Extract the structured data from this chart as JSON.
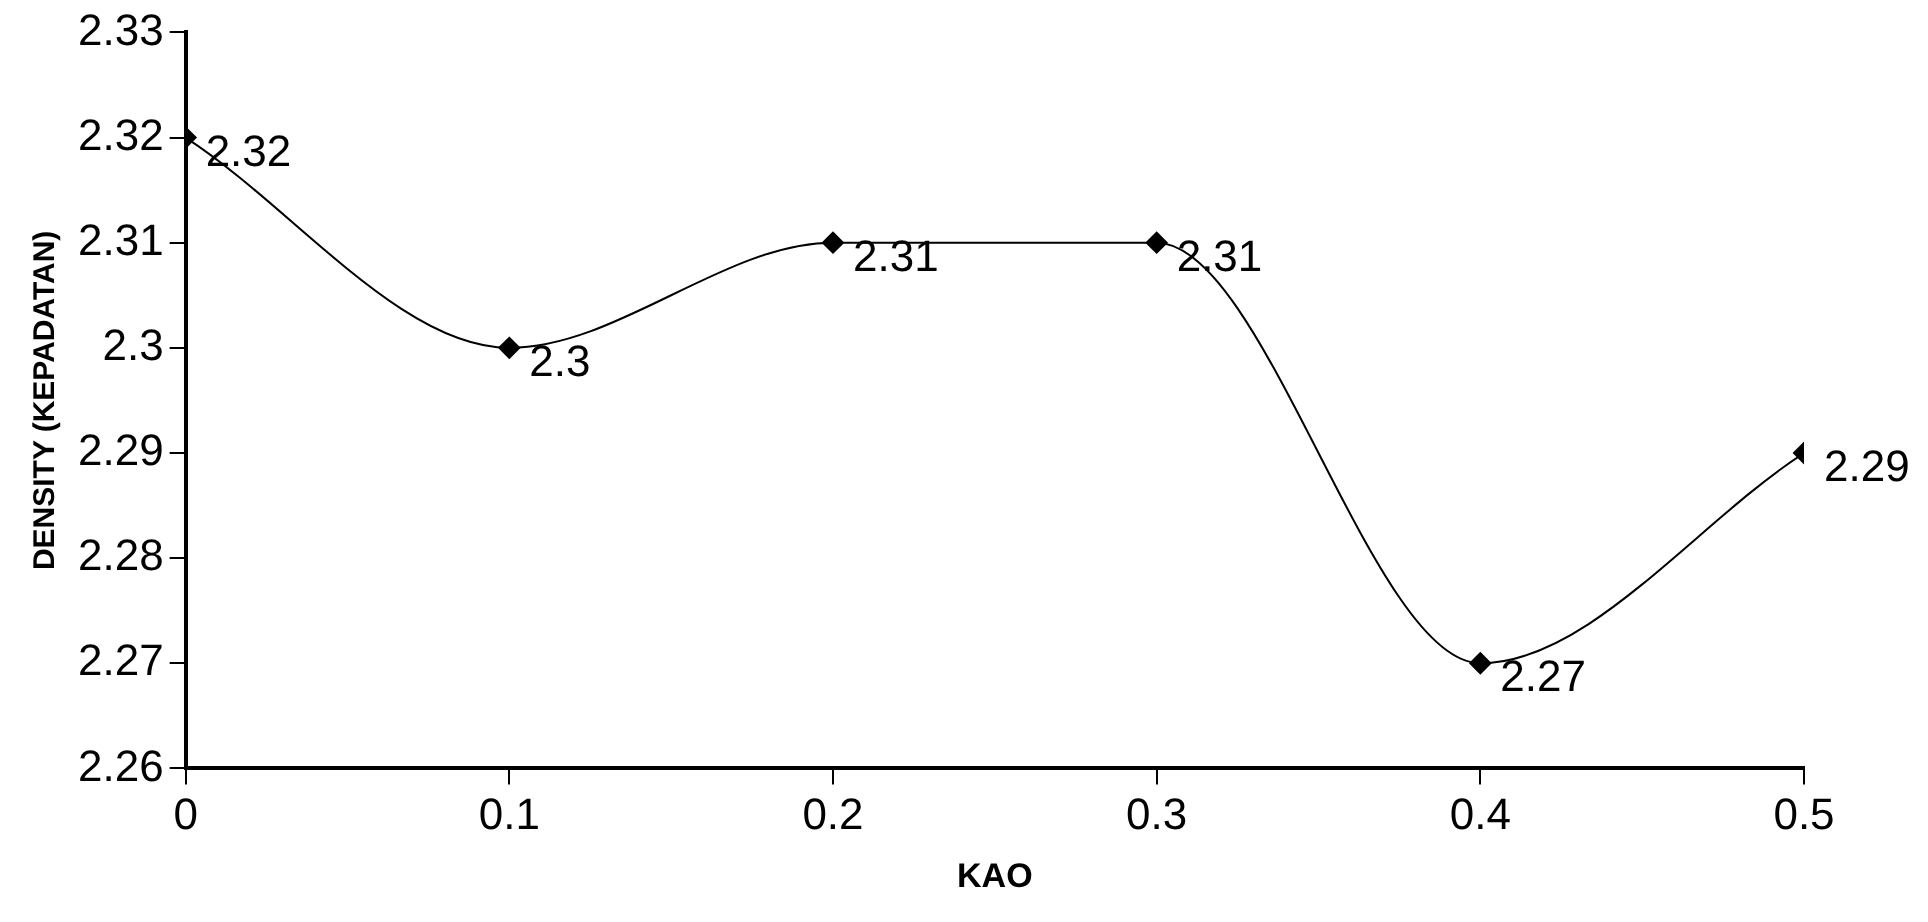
{
  "chart_data": {
    "type": "line",
    "xlabel": "KAO",
    "ylabel": "DENSITY (KEPADATAN)",
    "x": [
      0,
      0.1,
      0.2,
      0.3,
      0.4,
      0.5
    ],
    "series": [
      {
        "color": "#000000",
        "values": [
          2.32,
          2.3,
          2.31,
          2.31,
          2.27,
          2.29
        ]
      }
    ],
    "xlim": [
      0,
      0.5
    ],
    "xticks": [
      0,
      0.1,
      0.2,
      0.3,
      0.4,
      0.5
    ],
    "ylim": [
      2.26,
      2.33
    ],
    "yticks": [
      2.26,
      2.27,
      2.28,
      2.29,
      2.3,
      2.31,
      2.32,
      2.33
    ],
    "grid": false,
    "legend": false,
    "marker": "diamond",
    "line_style": "solid",
    "data_labels": true
  }
}
